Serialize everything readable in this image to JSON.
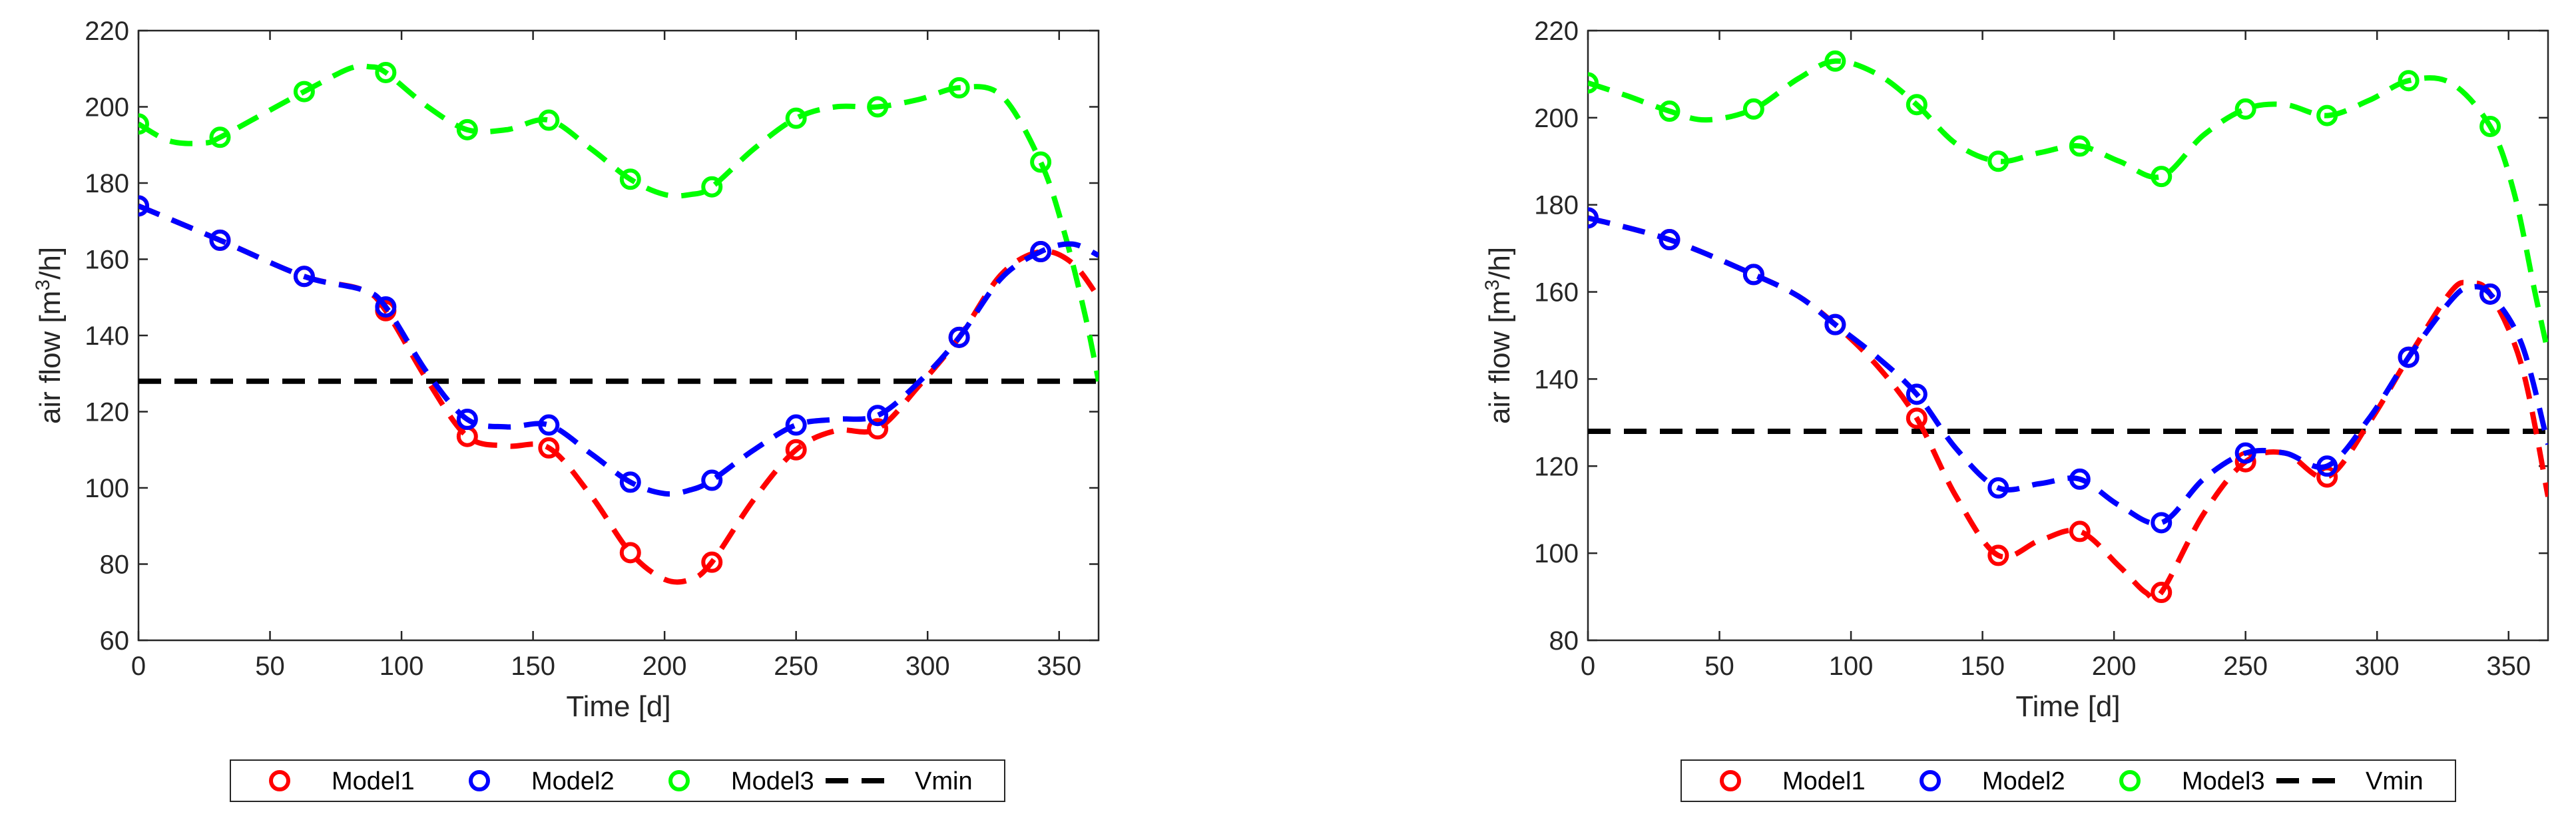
{
  "chart_data": [
    {
      "type": "line",
      "title": "",
      "xlabel": "Time [d]",
      "ylabel_main": "air flow [m",
      "ylabel_sup": "3",
      "ylabel_tail": "/h]",
      "xlim": [
        0,
        365
      ],
      "ylim": [
        60,
        220
      ],
      "xticks": [
        "0",
        "50",
        "100",
        "150",
        "200",
        "250",
        "300",
        "350"
      ],
      "yticks": [
        "60",
        "80",
        "100",
        "120",
        "140",
        "160",
        "180",
        "200",
        "220"
      ],
      "grid": false,
      "legend_position": "bottom-center",
      "vmin": 128,
      "series": [
        {
          "name": "Model1",
          "color": "#ff0000",
          "points": [
            [
              0,
              174
            ],
            [
              31,
              165
            ],
            [
              63,
              155.5
            ],
            [
              94,
              146.5
            ],
            [
              125,
              113.5
            ],
            [
              156,
              110.5
            ],
            [
              187,
              83
            ],
            [
              218,
              80.5
            ],
            [
              250,
              110
            ],
            [
              281,
              115.5
            ],
            [
              312,
              139.5
            ],
            [
              343,
              162
            ]
          ],
          "curve": [
            [
              0,
              174
            ],
            [
              31,
              165
            ],
            [
              63,
              155.5
            ],
            [
              85,
              152
            ],
            [
              94,
              146.5
            ],
            [
              110,
              128
            ],
            [
              125,
              113.5
            ],
            [
              140,
              111
            ],
            [
              156,
              110.5
            ],
            [
              172,
              98
            ],
            [
              187,
              83
            ],
            [
              200,
              76
            ],
            [
              210,
              76
            ],
            [
              218,
              80.5
            ],
            [
              234,
              97
            ],
            [
              250,
              110
            ],
            [
              265,
              115
            ],
            [
              281,
              115.5
            ],
            [
              297,
              127
            ],
            [
              312,
              139.5
            ],
            [
              328,
              156
            ],
            [
              343,
              162
            ],
            [
              355,
              159
            ],
            [
              365,
              150
            ]
          ]
        },
        {
          "name": "Model2",
          "color": "#0000ff",
          "points": [
            [
              0,
              174
            ],
            [
              31,
              165
            ],
            [
              63,
              155.5
            ],
            [
              94,
              147.5
            ],
            [
              125,
              118
            ],
            [
              156,
              116.5
            ],
            [
              187,
              101.5
            ],
            [
              218,
              102
            ],
            [
              250,
              116.5
            ],
            [
              281,
              119
            ],
            [
              312,
              139.5
            ],
            [
              343,
              162
            ]
          ],
          "curve": [
            [
              0,
              174
            ],
            [
              31,
              165
            ],
            [
              63,
              155.5
            ],
            [
              85,
              152
            ],
            [
              94,
              147.5
            ],
            [
              110,
              130
            ],
            [
              125,
              118
            ],
            [
              140,
              116
            ],
            [
              156,
              116.5
            ],
            [
              172,
              109
            ],
            [
              187,
              101.5
            ],
            [
              200,
              98.5
            ],
            [
              210,
              99.5
            ],
            [
              218,
              102
            ],
            [
              234,
              110
            ],
            [
              250,
              116.5
            ],
            [
              265,
              118
            ],
            [
              281,
              119
            ],
            [
              297,
              128
            ],
            [
              312,
              139.5
            ],
            [
              328,
              155
            ],
            [
              343,
              162
            ],
            [
              355,
              164
            ],
            [
              365,
              161
            ]
          ]
        },
        {
          "name": "Model3",
          "color": "#00ff00",
          "points": [
            [
              0,
              195.5
            ],
            [
              31,
              192
            ],
            [
              63,
              204
            ],
            [
              94,
              209
            ],
            [
              125,
              194
            ],
            [
              156,
              196.5
            ],
            [
              187,
              181
            ],
            [
              218,
              179
            ],
            [
              250,
              197
            ],
            [
              281,
              200
            ],
            [
              312,
              205
            ],
            [
              343,
              185.5
            ]
          ],
          "curve": [
            [
              0,
              195.5
            ],
            [
              12,
              191
            ],
            [
              25,
              190.5
            ],
            [
              31,
              192
            ],
            [
              47,
              198
            ],
            [
              63,
              204
            ],
            [
              80,
              210
            ],
            [
              88,
              210.5
            ],
            [
              94,
              209
            ],
            [
              110,
              200
            ],
            [
              125,
              194
            ],
            [
              140,
              194
            ],
            [
              156,
              196.5
            ],
            [
              172,
              189
            ],
            [
              187,
              181
            ],
            [
              200,
              177
            ],
            [
              210,
              177
            ],
            [
              218,
              179
            ],
            [
              234,
              189
            ],
            [
              250,
              197
            ],
            [
              265,
              200
            ],
            [
              281,
              200
            ],
            [
              297,
              202
            ],
            [
              312,
              205
            ],
            [
              328,
              203
            ],
            [
              343,
              185.5
            ],
            [
              352,
              167
            ],
            [
              360,
              145
            ],
            [
              365,
              128
            ]
          ]
        }
      ],
      "legend": [
        "Model1",
        "Model2",
        "Model3",
        "Vmin"
      ]
    },
    {
      "type": "line",
      "title": "",
      "xlabel": "Time [d]",
      "ylabel_main": "air flow [m",
      "ylabel_sup": "3",
      "ylabel_tail": "/h]",
      "xlim": [
        0,
        365
      ],
      "ylim": [
        80,
        220
      ],
      "xticks": [
        "0",
        "50",
        "100",
        "150",
        "200",
        "250",
        "300",
        "350"
      ],
      "yticks": [
        "80",
        "100",
        "120",
        "140",
        "160",
        "180",
        "200",
        "220"
      ],
      "grid": false,
      "legend_position": "bottom-center",
      "vmin": 128,
      "series": [
        {
          "name": "Model1",
          "color": "#ff0000",
          "points": [
            [
              0,
              177
            ],
            [
              31,
              172
            ],
            [
              63,
              164
            ],
            [
              94,
              152.5
            ],
            [
              125,
              131
            ],
            [
              156,
              99.5
            ],
            [
              187,
              105
            ],
            [
              218,
              91
            ],
            [
              250,
              121
            ],
            [
              281,
              117.5
            ],
            [
              312,
              145
            ],
            [
              343,
              159.5
            ]
          ],
          "curve": [
            [
              0,
              177
            ],
            [
              31,
              172
            ],
            [
              63,
              164
            ],
            [
              80,
              159
            ],
            [
              94,
              152.5
            ],
            [
              110,
              143
            ],
            [
              125,
              131
            ],
            [
              140,
              113
            ],
            [
              156,
              99.5
            ],
            [
              172,
              103
            ],
            [
              187,
              105
            ],
            [
              202,
              97
            ],
            [
              212,
              91
            ],
            [
              218,
              91
            ],
            [
              234,
              109
            ],
            [
              250,
              121
            ],
            [
              265,
              123
            ],
            [
              281,
              117.5
            ],
            [
              297,
              130
            ],
            [
              312,
              145
            ],
            [
              328,
              160
            ],
            [
              335,
              162
            ],
            [
              343,
              159.5
            ],
            [
              355,
              143
            ],
            [
              365,
              113
            ]
          ]
        },
        {
          "name": "Model2",
          "color": "#0000ff",
          "points": [
            [
              0,
              177
            ],
            [
              31,
              172
            ],
            [
              63,
              164
            ],
            [
              94,
              152.5
            ],
            [
              125,
              136.5
            ],
            [
              156,
              115
            ],
            [
              187,
              117
            ],
            [
              218,
              107
            ],
            [
              250,
              123
            ],
            [
              281,
              120
            ],
            [
              312,
              145
            ],
            [
              343,
              159.5
            ]
          ],
          "curve": [
            [
              0,
              177
            ],
            [
              31,
              172
            ],
            [
              63,
              164
            ],
            [
              80,
              159
            ],
            [
              94,
              152.5
            ],
            [
              110,
              145
            ],
            [
              125,
              136.5
            ],
            [
              140,
              124
            ],
            [
              156,
              115
            ],
            [
              172,
              116
            ],
            [
              187,
              117
            ],
            [
              202,
              111
            ],
            [
              218,
              107
            ],
            [
              234,
              117
            ],
            [
              250,
              123
            ],
            [
              265,
              123
            ],
            [
              281,
              120
            ],
            [
              297,
              131
            ],
            [
              312,
              145
            ],
            [
              328,
              158
            ],
            [
              335,
              161
            ],
            [
              343,
              159.5
            ],
            [
              355,
              148
            ],
            [
              365,
              125
            ]
          ]
        },
        {
          "name": "Model3",
          "color": "#00ff00",
          "points": [
            [
              0,
              208
            ],
            [
              31,
              201.5
            ],
            [
              63,
              202
            ],
            [
              94,
              213
            ],
            [
              125,
              203
            ],
            [
              156,
              190
            ],
            [
              187,
              193.5
            ],
            [
              218,
              186.5
            ],
            [
              250,
              202
            ],
            [
              281,
              200.5
            ],
            [
              312,
              208.5
            ],
            [
              343,
              198
            ]
          ],
          "curve": [
            [
              0,
              208
            ],
            [
              15,
              205
            ],
            [
              31,
              201.5
            ],
            [
              45,
              199.5
            ],
            [
              63,
              202
            ],
            [
              80,
              209
            ],
            [
              94,
              213
            ],
            [
              110,
              210
            ],
            [
              125,
              203
            ],
            [
              140,
              194
            ],
            [
              156,
              190
            ],
            [
              172,
              192
            ],
            [
              187,
              193.5
            ],
            [
              202,
              190
            ],
            [
              218,
              186.5
            ],
            [
              234,
              196
            ],
            [
              250,
              202
            ],
            [
              265,
              203
            ],
            [
              281,
              200.5
            ],
            [
              297,
              204
            ],
            [
              312,
              208.5
            ],
            [
              328,
              208
            ],
            [
              343,
              198
            ],
            [
              352,
              183
            ],
            [
              360,
              160
            ],
            [
              365,
              146
            ]
          ]
        }
      ],
      "legend": [
        "Model1",
        "Model2",
        "Model3",
        "Vmin"
      ]
    }
  ]
}
